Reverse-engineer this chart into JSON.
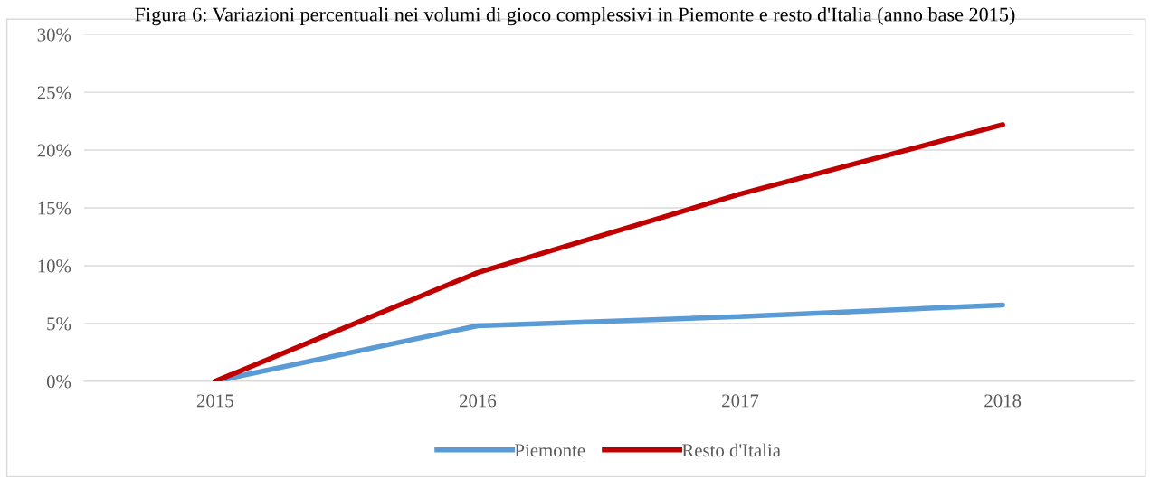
{
  "chart_data": {
    "type": "line",
    "title": "Figura 6: Variazioni percentuali nei volumi di gioco complessivi in Piemonte e resto d'Italia (anno base 2015)",
    "categories": [
      "2015",
      "2016",
      "2017",
      "2018"
    ],
    "series": [
      {
        "name": "Piemonte",
        "color": "#5b9bd5",
        "values": [
          0,
          4.8,
          5.6,
          6.6
        ]
      },
      {
        "name": "Resto d'Italia",
        "color": "#c00000",
        "values": [
          0,
          9.4,
          16.2,
          22.2
        ]
      }
    ],
    "ylim": [
      0,
      30
    ],
    "yticks": [
      {
        "value": 0,
        "label": "0%"
      },
      {
        "value": 5,
        "label": "5%"
      },
      {
        "value": 10,
        "label": "10%"
      },
      {
        "value": 15,
        "label": "15%"
      },
      {
        "value": 20,
        "label": "20%"
      },
      {
        "value": 25,
        "label": "25%"
      },
      {
        "value": 30,
        "label": "30%"
      }
    ],
    "grid": "y",
    "legend": "bottom",
    "marker": "none",
    "line_style": "solid"
  }
}
